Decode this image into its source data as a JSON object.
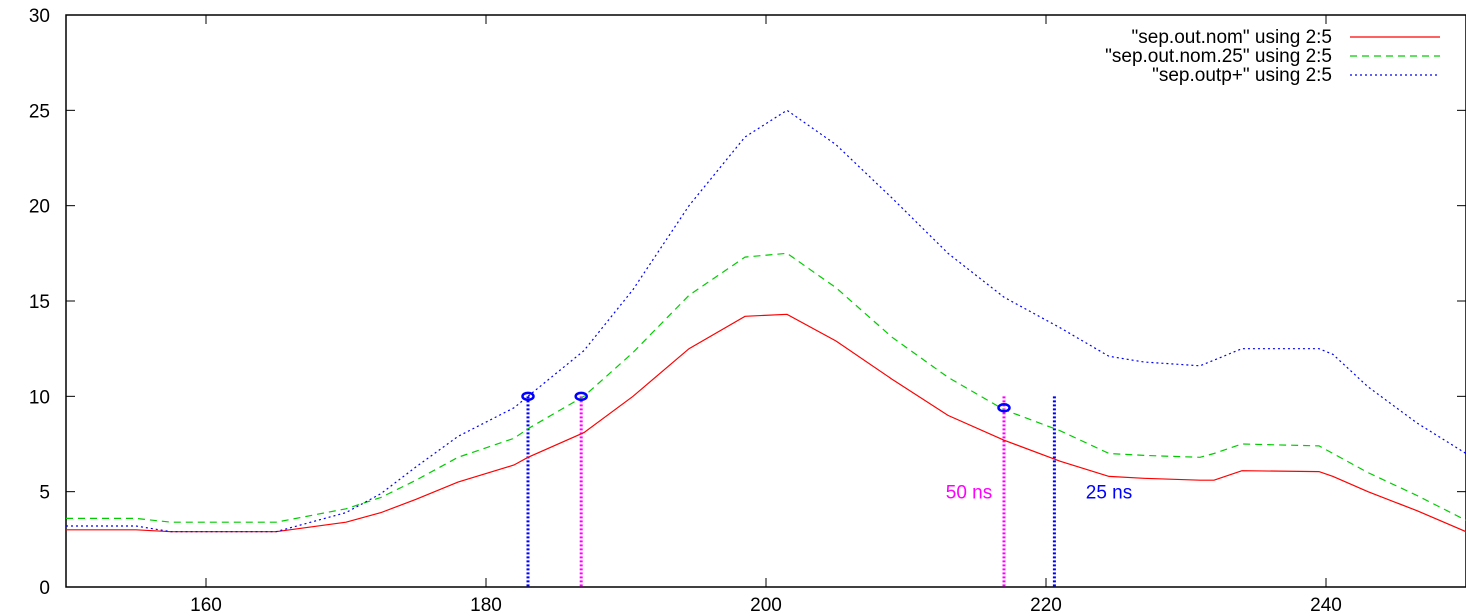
{
  "chart_data": {
    "type": "line",
    "title": "",
    "xlabel": "",
    "ylabel": "",
    "xlim": [
      150,
      250
    ],
    "ylim": [
      0,
      30
    ],
    "xticks": [
      160,
      180,
      200,
      220,
      240
    ],
    "yticks": [
      0,
      5,
      10,
      15,
      20,
      25,
      30
    ],
    "grid": false,
    "legend_position": "top-right",
    "series": [
      {
        "name": "\"sep.out.nom\" using 2:5",
        "color": "#ff0000",
        "style": "solid",
        "x": [
          150,
          155,
          157.5,
          165,
          170,
          172.5,
          175,
          178,
          182,
          183,
          187,
          190.5,
          194.5,
          198.5,
          201.5,
          205,
          209,
          213,
          217,
          221,
          224.5,
          227,
          231,
          232,
          234,
          239.5,
          240.5,
          243,
          246.5,
          250
        ],
        "y": [
          3.0,
          3.0,
          2.9,
          2.9,
          3.4,
          3.9,
          4.6,
          5.5,
          6.4,
          6.8,
          8.1,
          10.0,
          12.5,
          14.2,
          14.3,
          12.9,
          10.9,
          9.0,
          7.7,
          6.6,
          5.8,
          5.7,
          5.6,
          5.6,
          6.1,
          6.05,
          5.8,
          5.0,
          4.0,
          2.9
        ]
      },
      {
        "name": "\"sep.out.nom.25\" using 2:5",
        "color": "#00cc00",
        "style": "dashed",
        "x": [
          150,
          155,
          157.5,
          165,
          170,
          172.5,
          175,
          178,
          182,
          183,
          187,
          190.5,
          194.5,
          198.5,
          201.5,
          205,
          209,
          213,
          217,
          221,
          224.5,
          227,
          231,
          232,
          234,
          239.5,
          240.5,
          243,
          246.5,
          250
        ],
        "y": [
          3.6,
          3.6,
          3.4,
          3.4,
          4.1,
          4.7,
          5.6,
          6.8,
          7.8,
          8.3,
          10.0,
          12.3,
          15.3,
          17.3,
          17.5,
          15.7,
          13.1,
          11.0,
          9.3,
          8.2,
          7.0,
          6.9,
          6.8,
          7.0,
          7.5,
          7.4,
          7.0,
          6.0,
          4.8,
          3.5
        ]
      },
      {
        "name": "\"sep.outp+\" using 2:5",
        "color": "#0000ff",
        "style": "dotted",
        "x": [
          150,
          155,
          157.5,
          165,
          170,
          172.5,
          175,
          178,
          182,
          183,
          187,
          190.5,
          194.5,
          198.5,
          201.5,
          205,
          209,
          213,
          217,
          221,
          224.5,
          227,
          231,
          232,
          234,
          239.5,
          240.5,
          243,
          246.5,
          250
        ],
        "y": [
          3.2,
          3.2,
          2.9,
          2.9,
          3.9,
          4.9,
          6.3,
          7.9,
          9.4,
          10.0,
          12.4,
          15.6,
          20.0,
          23.6,
          25.0,
          23.2,
          20.4,
          17.5,
          15.2,
          13.6,
          12.1,
          11.8,
          11.6,
          11.9,
          12.5,
          12.5,
          12.2,
          10.5,
          8.6,
          7.0
        ]
      }
    ],
    "markers": [
      {
        "x": 183,
        "y": 10.0,
        "label": "o",
        "color": "#0000ff"
      },
      {
        "x": 186.8,
        "y": 10.0,
        "label": "o",
        "color": "#0000ff"
      },
      {
        "x": 217,
        "y": 9.4,
        "label": "o",
        "color": "#0000ff"
      }
    ],
    "vertical_lines": [
      {
        "x": 183,
        "y_top": 10.0,
        "color": "#0000ff"
      },
      {
        "x": 186.8,
        "y_top": 10.0,
        "color": "#ff00ff"
      },
      {
        "x": 217,
        "y_top": 10.0,
        "color": "#ff00ff"
      },
      {
        "x": 220.6,
        "y_top": 10.0,
        "color": "#0000ff"
      }
    ],
    "annotations": [
      {
        "text": "50 ns",
        "x": 214.5,
        "y": 5,
        "color": "#ff00ff"
      },
      {
        "text": "25 ns",
        "x": 224.5,
        "y": 5,
        "color": "#0000ff"
      }
    ]
  }
}
